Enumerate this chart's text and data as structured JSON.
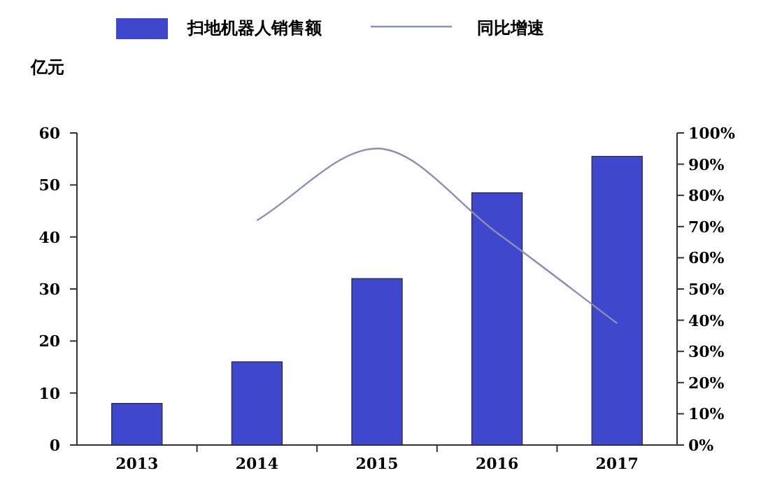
{
  "chart_data": {
    "type": "bar",
    "categories": [
      "2013",
      "2014",
      "2015",
      "2016",
      "2017"
    ],
    "series": [
      {
        "name": "扫地机器人销售额",
        "color": "#3f48cc",
        "values": [
          8,
          16,
          32,
          48.5,
          55.5
        ]
      },
      {
        "name": "同比增速",
        "type": "line",
        "color": "#8a8fb5",
        "axis": "y2",
        "values": [
          null,
          72,
          95,
          68,
          39
        ]
      }
    ],
    "ylabel": "亿元",
    "ylim": [
      0,
      60
    ],
    "yticks": [
      0,
      10,
      20,
      30,
      40,
      50,
      60
    ],
    "y2lim": [
      0,
      100
    ],
    "y2ticks": [
      {
        "value": 0,
        "label": "0%"
      },
      {
        "value": 10,
        "label": "10%"
      },
      {
        "value": 20,
        "label": "20%"
      },
      {
        "value": 30,
        "label": "30%"
      },
      {
        "value": 40,
        "label": "40%"
      },
      {
        "value": 50,
        "label": "50%"
      },
      {
        "value": 60,
        "label": "60%"
      },
      {
        "value": 70,
        "label": "70%"
      },
      {
        "value": 80,
        "label": "80%"
      },
      {
        "value": 90,
        "label": "90%"
      },
      {
        "value": 100,
        "label": "100%"
      }
    ],
    "legend": "top",
    "grid": false,
    "marker": "none"
  }
}
